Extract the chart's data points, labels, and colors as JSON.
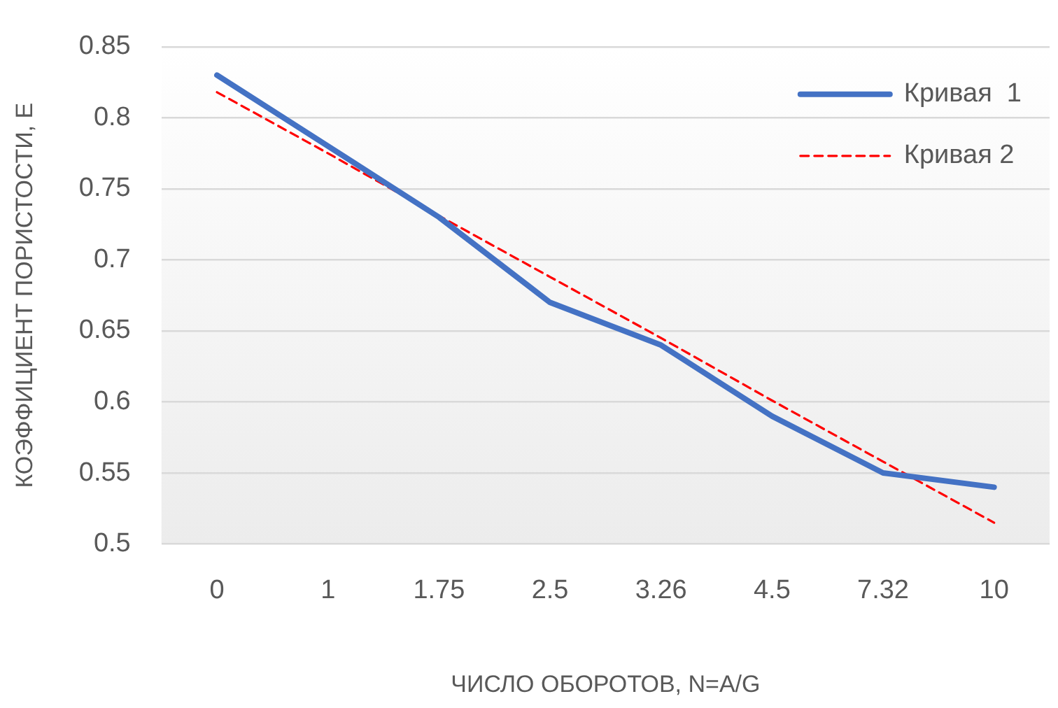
{
  "chart_data": {
    "type": "line",
    "xlabel": "ЧИСЛО ОБОРОТОВ, N=A/G",
    "ylabel": "КОЭФФИЦИЕНТ ПОРИСТОСТИ, E",
    "categories": [
      "0",
      "1",
      "1.75",
      "2.5",
      "3.26",
      "4.5",
      "7.32",
      "10"
    ],
    "series": [
      {
        "name": "Кривая  1",
        "color": "#4472c4",
        "line_style": "solid",
        "values": [
          0.83,
          0.78,
          0.73,
          0.67,
          0.64,
          0.59,
          0.55,
          0.54
        ]
      },
      {
        "name": "Кривая 2",
        "color": "#ff0000",
        "line_style": "dashed",
        "values": [
          0.818,
          0.775,
          0.731,
          0.688,
          0.645,
          0.601,
          0.558,
          0.515
        ]
      }
    ],
    "ylim": [
      0.5,
      0.85
    ],
    "yticks": [
      0.5,
      0.55,
      0.6,
      0.65,
      0.7,
      0.75,
      0.8,
      0.85
    ],
    "grid": "y",
    "legend": "top right",
    "marker": "none"
  }
}
